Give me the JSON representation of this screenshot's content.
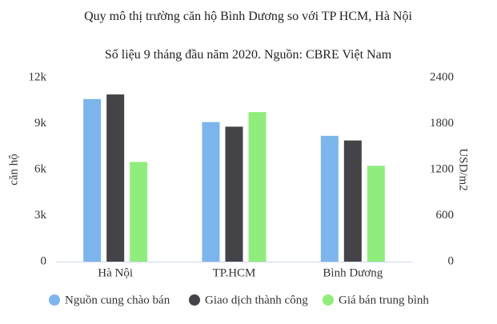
{
  "chart_data": {
    "type": "bar",
    "title": "Quy mô thị trường căn hộ Bình Dương so với TP HCM, Hà Nội",
    "subtitle": "Số liệu 9 tháng đầu năm 2020. Nguồn: CBRE Việt Nam",
    "y_label": "căn hộ",
    "y2_label": "USD/m2",
    "categories": [
      "Hà Nội",
      "TP.HCM",
      "Bình Dương"
    ],
    "series": [
      {
        "name": "Nguồn cung chào bán",
        "color": "#7cb5ec",
        "values": [
          10600,
          9100,
          8200
        ]
      },
      {
        "name": "Giao dịch thành công",
        "color": "#434348",
        "values": [
          10900,
          8800,
          7900
        ]
      },
      {
        "name": "Giá bán trung bình",
        "color": "#90ed7d",
        "values": [
          1300,
          1950,
          1250
        ],
        "axis": "y2"
      }
    ],
    "ylim": [
      0,
      12000
    ],
    "yticks": [
      0,
      {
        "value": 3000,
        "label": "3k"
      },
      {
        "value": 6000,
        "label": "6k"
      },
      {
        "value": 9000,
        "label": "9k"
      },
      {
        "value": 12000,
        "label": "12k"
      }
    ],
    "y2lim": [
      0,
      2400
    ],
    "y2ticks": [
      0,
      600,
      1200,
      1800,
      2400
    ],
    "grid": false
  }
}
